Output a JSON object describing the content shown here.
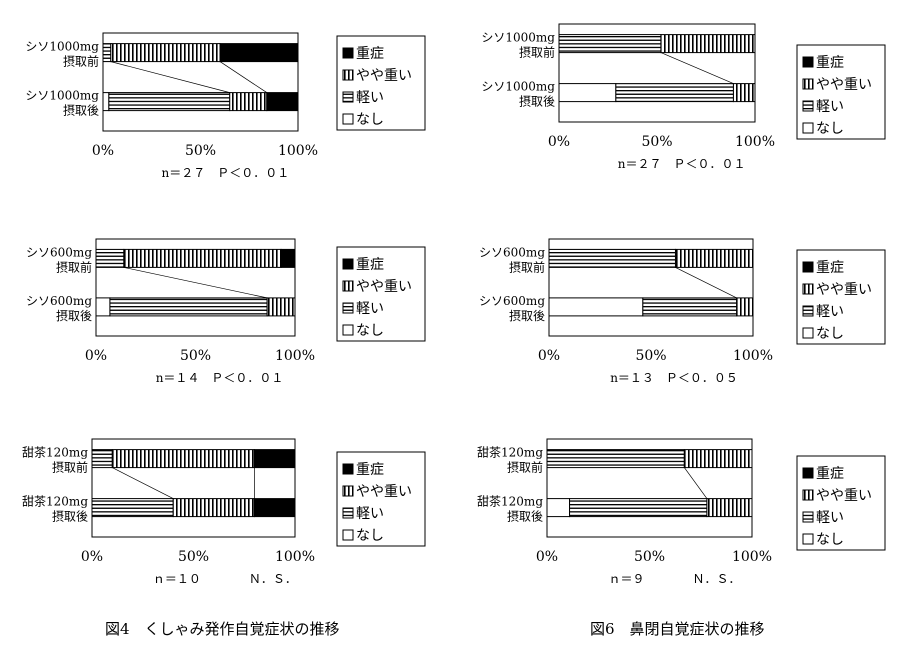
{
  "figures": {
    "fig4": {
      "title": "図4　くしゃみ発作自覚症状の推移"
    },
    "fig6": {
      "title": "図6　鼻閉自覚症状の推移"
    }
  },
  "legend": {
    "items": [
      {
        "label": "重症",
        "pattern": "solid"
      },
      {
        "label": "やや重い",
        "pattern": "vertical"
      },
      {
        "label": "軽い",
        "pattern": "horizontal"
      },
      {
        "label": "なし",
        "pattern": "none"
      }
    ]
  },
  "axis": {
    "ticks": [
      "0%",
      "50%",
      "100%"
    ]
  },
  "chart_data": [
    {
      "type": "bar",
      "stacked": true,
      "orientation": "horizontal",
      "figure": "図4",
      "categories": [
        "シソ1000mg 摂取前",
        "シソ1000mg 摂取後"
      ],
      "stack_order": [
        "なし",
        "軽い",
        "やや重い",
        "重症"
      ],
      "series": [
        {
          "name": "なし",
          "values": [
            0,
            3
          ]
        },
        {
          "name": "軽い",
          "values": [
            4,
            62
          ]
        },
        {
          "name": "やや重い",
          "values": [
            56,
            19
          ]
        },
        {
          "name": "重症",
          "values": [
            40,
            16
          ]
        }
      ],
      "xlim": [
        0,
        100
      ],
      "xticks": [
        "0%",
        "50%",
        "100%"
      ],
      "note": "n＝２７　Ｐ＜０．０１",
      "legend": "right"
    },
    {
      "type": "bar",
      "stacked": true,
      "orientation": "horizontal",
      "figure": "図6",
      "categories": [
        "シソ1000mg 摂取前",
        "シソ1000mg 摂取後"
      ],
      "stack_order": [
        "なし",
        "軽い",
        "やや重い",
        "重症"
      ],
      "series": [
        {
          "name": "なし",
          "values": [
            0,
            29
          ]
        },
        {
          "name": "軽い",
          "values": [
            52,
            60
          ]
        },
        {
          "name": "やや重い",
          "values": [
            48,
            11
          ]
        },
        {
          "name": "重症",
          "values": [
            0,
            0
          ]
        }
      ],
      "xlim": [
        0,
        100
      ],
      "xticks": [
        "0%",
        "50%",
        "100%"
      ],
      "note": "n＝２７　Ｐ＜０．０１",
      "legend": "right"
    },
    {
      "type": "bar",
      "stacked": true,
      "orientation": "horizontal",
      "figure": "図4",
      "categories": [
        "シソ600mg 摂取前",
        "シソ600mg 摂取後"
      ],
      "stack_order": [
        "なし",
        "軽い",
        "やや重い",
        "重症"
      ],
      "series": [
        {
          "name": "なし",
          "values": [
            0,
            7
          ]
        },
        {
          "name": "軽い",
          "values": [
            14,
            79
          ]
        },
        {
          "name": "やや重い",
          "values": [
            79,
            14
          ]
        },
        {
          "name": "重症",
          "values": [
            7,
            0
          ]
        }
      ],
      "xlim": [
        0,
        100
      ],
      "xticks": [
        "0%",
        "50%",
        "100%"
      ],
      "note": "n＝１４　Ｐ＜０．０１",
      "legend": "right"
    },
    {
      "type": "bar",
      "stacked": true,
      "orientation": "horizontal",
      "figure": "図6",
      "categories": [
        "シソ600mg 摂取前",
        "シソ600mg 摂取後"
      ],
      "stack_order": [
        "なし",
        "軽い",
        "やや重い",
        "重症"
      ],
      "series": [
        {
          "name": "なし",
          "values": [
            0,
            46
          ]
        },
        {
          "name": "軽い",
          "values": [
            62,
            46
          ]
        },
        {
          "name": "やや重い",
          "values": [
            38,
            8
          ]
        },
        {
          "name": "重症",
          "values": [
            0,
            0
          ]
        }
      ],
      "xlim": [
        0,
        100
      ],
      "xticks": [
        "0%",
        "50%",
        "100%"
      ],
      "note": "n＝１３　Ｐ＜０．０５",
      "legend": "right"
    },
    {
      "type": "bar",
      "stacked": true,
      "orientation": "horizontal",
      "figure": "図4",
      "categories": [
        "甜茶120mg 摂取前",
        "甜茶120mg 摂取後"
      ],
      "stack_order": [
        "なし",
        "軽い",
        "やや重い",
        "重症"
      ],
      "series": [
        {
          "name": "なし",
          "values": [
            0,
            0
          ]
        },
        {
          "name": "軽い",
          "values": [
            10,
            40
          ]
        },
        {
          "name": "やや重い",
          "values": [
            70,
            40
          ]
        },
        {
          "name": "重症",
          "values": [
            20,
            20
          ]
        }
      ],
      "xlim": [
        0,
        100
      ],
      "xticks": [
        "0%",
        "50%",
        "100%"
      ],
      "note": "ｎ＝１０　　　　Ｎ．Ｓ．",
      "legend": "right"
    },
    {
      "type": "bar",
      "stacked": true,
      "orientation": "horizontal",
      "figure": "図6",
      "categories": [
        "甜茶120mg 摂取前",
        "甜茶120mg 摂取後"
      ],
      "stack_order": [
        "なし",
        "軽い",
        "やや重い",
        "重症"
      ],
      "series": [
        {
          "name": "なし",
          "values": [
            0,
            11
          ]
        },
        {
          "name": "軽い",
          "values": [
            67,
            67
          ]
        },
        {
          "name": "やや重い",
          "values": [
            33,
            22
          ]
        },
        {
          "name": "重症",
          "values": [
            0,
            0
          ]
        }
      ],
      "xlim": [
        0,
        100
      ],
      "xticks": [
        "0%",
        "50%",
        "100%"
      ],
      "note": "ｎ＝９　　　　Ｎ．Ｓ．",
      "legend": "right"
    }
  ]
}
